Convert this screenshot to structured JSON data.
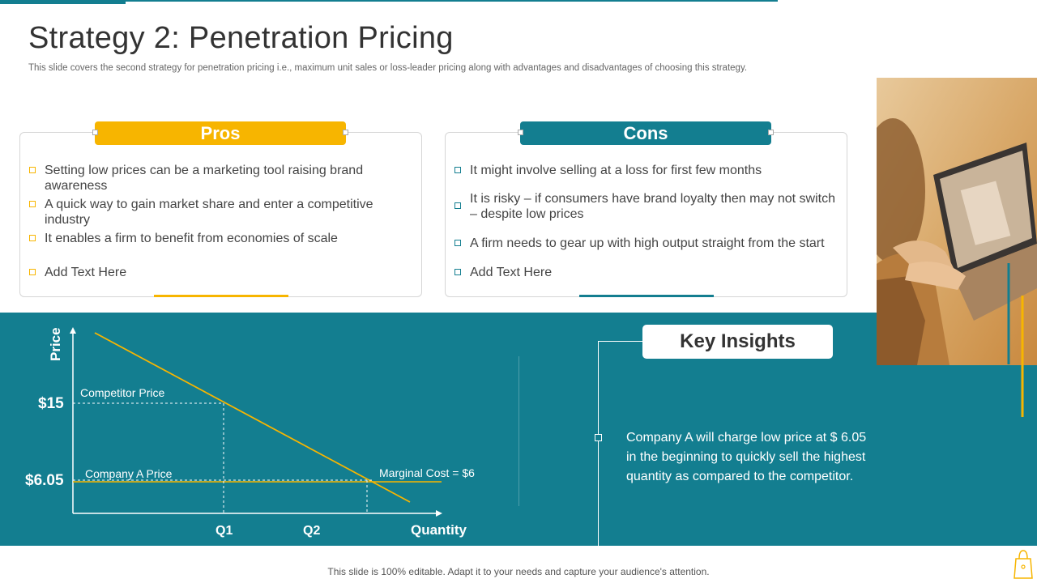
{
  "title": "Strategy 2: Penetration Pricing",
  "subtitle": "This slide covers the second strategy for penetration pricing i.e., maximum unit sales or loss-leader pricing along with advantages and disadvantages of choosing this strategy.",
  "pros": {
    "header": "Pros",
    "items": [
      "Setting low prices can be a marketing tool raising brand awareness",
      "A quick way to gain market share and enter a competitive industry",
      "It enables a firm to benefit from economies of scale",
      "Add Text Here"
    ]
  },
  "cons": {
    "header": "Cons",
    "items": [
      "It might involve selling at a loss for first few months",
      "It is risky – if consumers have brand loyalty then may not switch – despite low prices",
      "A firm needs to gear up with high output straight from the start",
      "Add Text Here"
    ]
  },
  "chart": {
    "y_axis_label": "Price",
    "x_axis_label": "Quantity",
    "price_high": "$15",
    "price_low": "$6.05",
    "competitor_label": "Competitor Price",
    "company_label": "Company A Price",
    "marginal_label": "Marginal Cost = $6",
    "q1": "Q1",
    "q2": "Q2"
  },
  "insights": {
    "title": "Key Insights",
    "text": "Company A will charge low price at $ 6.05 in the beginning to quickly sell the highest quantity as compared to the competitor."
  },
  "footer": "This slide is 100% editable. Adapt it to your needs and capture your audience's attention.",
  "colors": {
    "teal": "#137e90",
    "yellow": "#f7b500"
  }
}
